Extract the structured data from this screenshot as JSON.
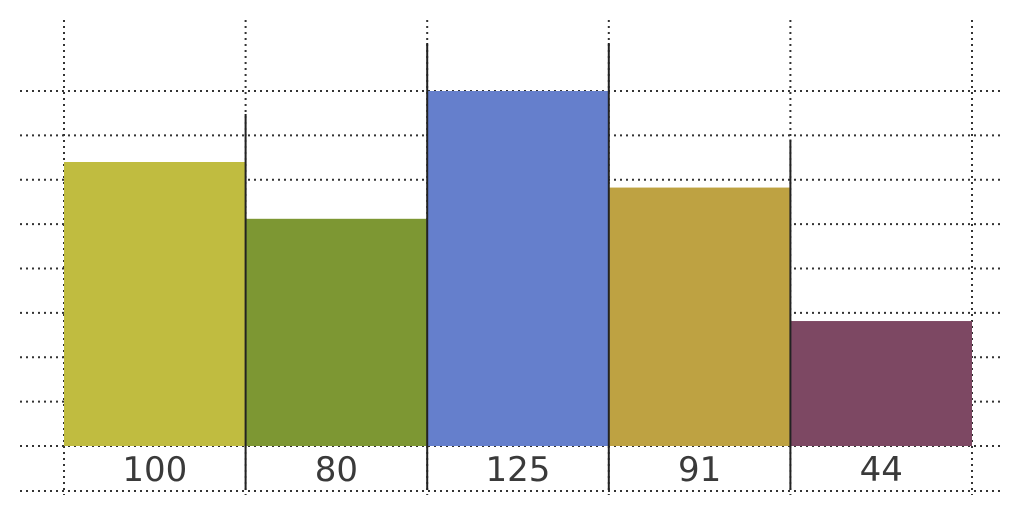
{
  "chart_data": {
    "type": "bar",
    "categories": [
      "100",
      "80",
      "125",
      "91",
      "44"
    ],
    "values": [
      100,
      80,
      125,
      91,
      44
    ],
    "title": "",
    "xlabel": "",
    "ylabel": "",
    "ylim": [
      0,
      140
    ],
    "grid": true,
    "legend": "none",
    "colors": [
      "#c0bc40",
      "#7d9733",
      "#657fcc",
      "#bea242",
      "#7d4863"
    ]
  }
}
